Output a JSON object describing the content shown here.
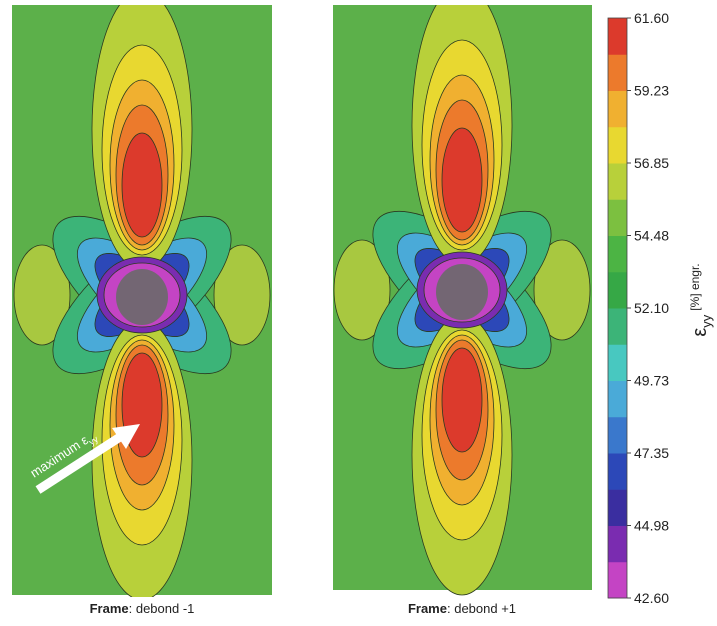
{
  "panels": [
    {
      "caption_bold": "Frame",
      "caption": ": debond -1"
    },
    {
      "caption_bold": "Frame",
      "caption": ": debond +1"
    }
  ],
  "annotation": {
    "text": "maximum ε",
    "subscript": "yy"
  },
  "colorbar": {
    "symbol": "ε",
    "subscript": "yy",
    "unit": "[%] engr.",
    "ticks": [
      "61.60",
      "59.23",
      "56.85",
      "54.48",
      "52.10",
      "49.73",
      "47.35",
      "44.98",
      "42.60"
    ],
    "colors": [
      "#c444c4",
      "#7a2cb0",
      "#3a2ea0",
      "#2c48b8",
      "#3a78cc",
      "#4aaad8",
      "#48c8c0",
      "#3cb478",
      "#36a846",
      "#4cb444",
      "#7cc040",
      "#b8d03a",
      "#e8d830",
      "#f0b030",
      "#ec7a2c",
      "#dc3a2c"
    ]
  }
}
